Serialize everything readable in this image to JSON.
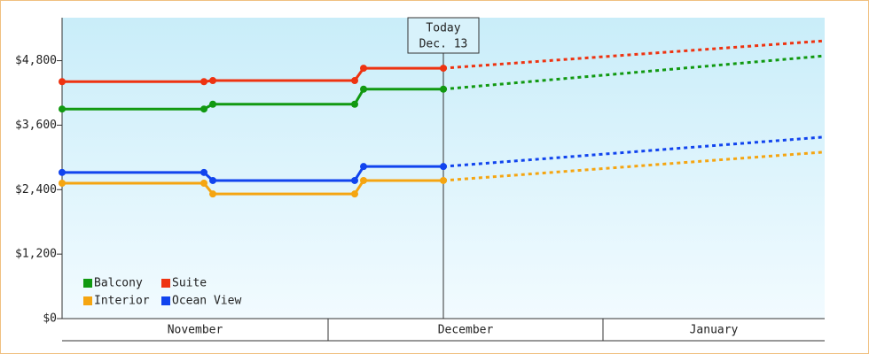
{
  "chart_data": {
    "type": "line",
    "x": [
      0,
      16,
      17,
      33,
      34,
      43,
      86
    ],
    "xlim": [
      0,
      86
    ],
    "xticks": [
      {
        "value": 0,
        "label": "November"
      },
      {
        "value": 30,
        "label": "December"
      },
      {
        "value": 61,
        "label": "January"
      }
    ],
    "ylim": [
      0,
      5600
    ],
    "yticks": [
      {
        "value": 0,
        "label": "$0"
      },
      {
        "value": 1200,
        "label": "$1,200"
      },
      {
        "value": 2400,
        "label": "$2,400"
      },
      {
        "value": 3600,
        "label": "$3,600"
      },
      {
        "value": 4800,
        "label": "$4,800"
      }
    ],
    "series": [
      {
        "name": "Balcony",
        "color": "#119911",
        "values": [
          3900,
          3900,
          3990,
          3990,
          4270,
          4270,
          4890
        ]
      },
      {
        "name": "Suite",
        "color": "#ee3311",
        "values": [
          4410,
          4410,
          4430,
          4430,
          4660,
          4660,
          5170
        ]
      },
      {
        "name": "Interior",
        "color": "#f5a511",
        "values": [
          2520,
          2520,
          2320,
          2320,
          2570,
          2570,
          3100
        ]
      },
      {
        "name": "Ocean View",
        "color": "#1144ee",
        "values": [
          2720,
          2720,
          2570,
          2570,
          2830,
          2830,
          3380
        ]
      }
    ],
    "annotation": {
      "lines": [
        "Today",
        "Dec. 13"
      ],
      "x": 43
    },
    "legend": "lower left"
  }
}
